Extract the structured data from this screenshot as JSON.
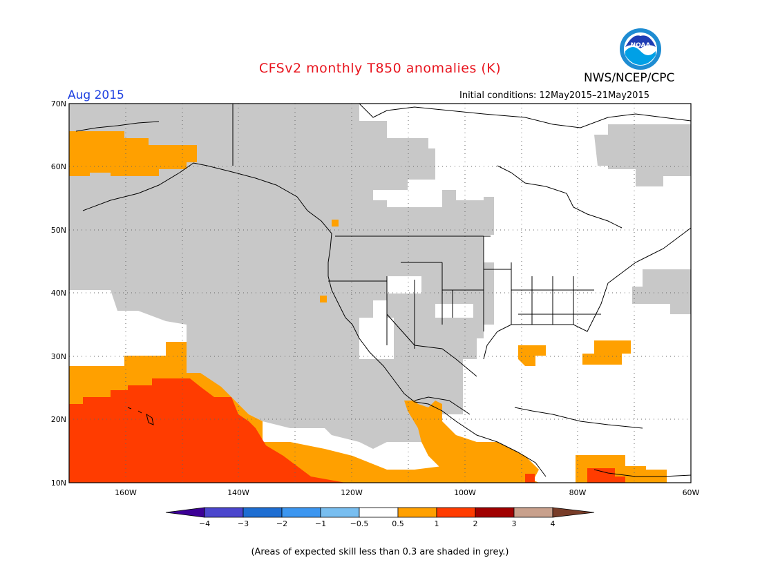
{
  "header": {
    "title": "CFSv2 monthly T850 anomalies (K)",
    "organization": "NWS/NCEP/CPC",
    "logo_text": "NOAA",
    "valid_period": "Aug 2015",
    "initial_conditions": "Initial conditions: 12May2015–21May2015"
  },
  "map": {
    "lat_labels": [
      "70N",
      "60N",
      "50N",
      "40N",
      "30N",
      "20N",
      "10N"
    ],
    "lon_labels": [
      "160W",
      "140W",
      "120W",
      "100W",
      "80W",
      "60W"
    ],
    "gridlines": "dotted",
    "colors": {
      "low_skill_grey": "#c8c8c8",
      "neutral": "#ffffff",
      "anom_0_5_to_1": "#ffa000",
      "anom_1_to_2": "#ff3c00",
      "coastline": "#000000"
    }
  },
  "colorbar": {
    "labels": [
      "−4",
      "−3",
      "−2",
      "−1",
      "−0.5",
      "0.5",
      "1",
      "2",
      "3",
      "4"
    ],
    "colors": [
      "#3c0096",
      "#4b46cd",
      "#1e6ed2",
      "#3c96f0",
      "#78bef0",
      "#ffffff",
      "#ffa000",
      "#ff3c00",
      "#a00000",
      "#c8a08c",
      "#783c28"
    ]
  },
  "footnote": "(Areas of expected skill less than 0.3 are shaded in grey.)"
}
